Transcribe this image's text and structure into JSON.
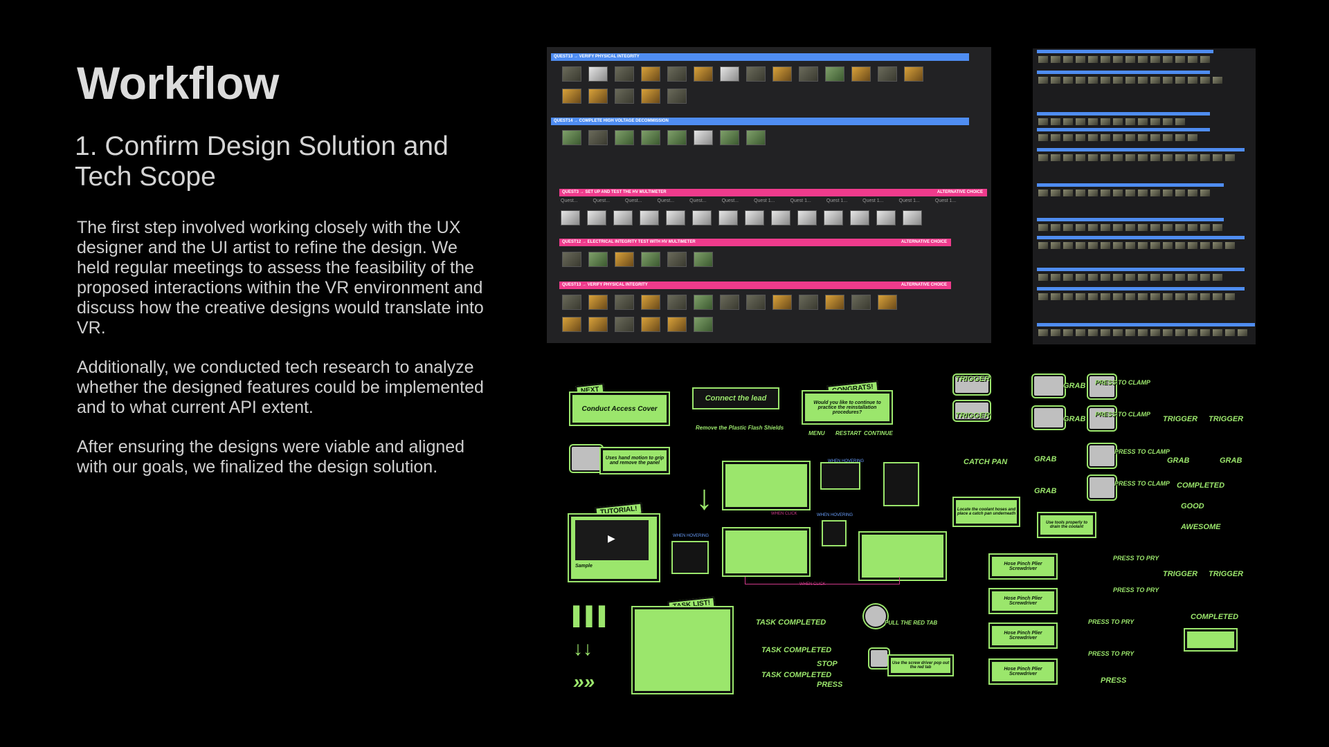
{
  "heading": {
    "title": "Workflow",
    "subtitle": "1. Confirm Design Solution and Tech Scope"
  },
  "paragraphs": {
    "p1": "The first step involved working closely with the UX designer and the UI artist to refine the design. We held regular meetings to assess the feasibility of the proposed interactions within the VR environment and discuss how the creative designs would translate into VR.",
    "p2": "Additionally, we conducted tech research to analyze whether the designed features could be implemented and to what current API extent.",
    "p3": "After ensuring the designs were viable and aligned with our goals, we finalized the design solution."
  },
  "board_main": {
    "quests": [
      {
        "label": "QUEST13 → VERIFY PHYSICAL INTEGRITY",
        "color": "blue"
      },
      {
        "label": "QUEST14 → COMPLETE HIGH VOLTAGE DECOMMISSION",
        "color": "blue"
      },
      {
        "label": "QUEST3 → SET UP AND TEST THE HV MULTIMETER",
        "color": "pink",
        "alt": "ALTERNATIVE CHOICE"
      },
      {
        "label": "QUEST12 → ELECTRICAL INTEGRITY TEST WITH HV MULTIMETER",
        "color": "pink",
        "alt": "ALTERNATIVE CHOICE"
      },
      {
        "label": "QUEST13 → VERIFY PHYSICAL INTEGRITY",
        "color": "pink",
        "alt": "ALTERNATIVE CHOICE"
      }
    ],
    "step_labels": [
      "Quest...",
      "Quest...",
      "Quest...",
      "Quest...",
      "Quest...",
      "Quest...",
      "Quest 1...",
      "Quest 1...",
      "Quest 1...",
      "Quest 1...",
      "Quest 1...",
      "Quest 1..."
    ]
  },
  "kit": {
    "next_tag": "NEXT",
    "conduct": "Conduct Access Cover",
    "connect": "Connect the lead",
    "remove": "Remove the Plastic Flash Shields",
    "congrats_tag": "CONGRATS!",
    "congrats_body": "Would you like to continue to practice the reinstallation procedures?",
    "congrats_buttons": [
      "MENU",
      "RESTART",
      "CONTINUE"
    ],
    "hand_motion": "Uses hand motion to grip and remove the panel",
    "tutorial_tag": "TUTORIAL!",
    "sample": "Sample",
    "task_list_tag": "TASK LIST!",
    "when_hovering": "WHEN HOVERING",
    "when_click": "WHEN CLICK",
    "locate": "Locate the coolant hoses and place a catch pan underneath",
    "use_tools": "Use tools properly to drain the coolant",
    "catch_pan": "CATCH PAN",
    "trigger": "TRIGGER",
    "grab": "GRAB",
    "press_to_clamp": "PRESS TO CLAMP",
    "press_to_pry": "PRESS TO PRY",
    "press": "PRESS",
    "completed": "COMPLETED",
    "task_completed": "TASK COMPLETED",
    "good": "GOOD",
    "awesome": "AWESOME",
    "stop": "STOP",
    "tool_name": "Hose Pinch Plier Screwdriver",
    "use_screwdriver": "Use the screw driver pop out the red tab",
    "pull_tab": "PULL THE RED TAB"
  },
  "colors": {
    "accent_green": "#9be66c",
    "quest_blue": "#4f8df2",
    "quest_pink": "#ef3b8c"
  }
}
